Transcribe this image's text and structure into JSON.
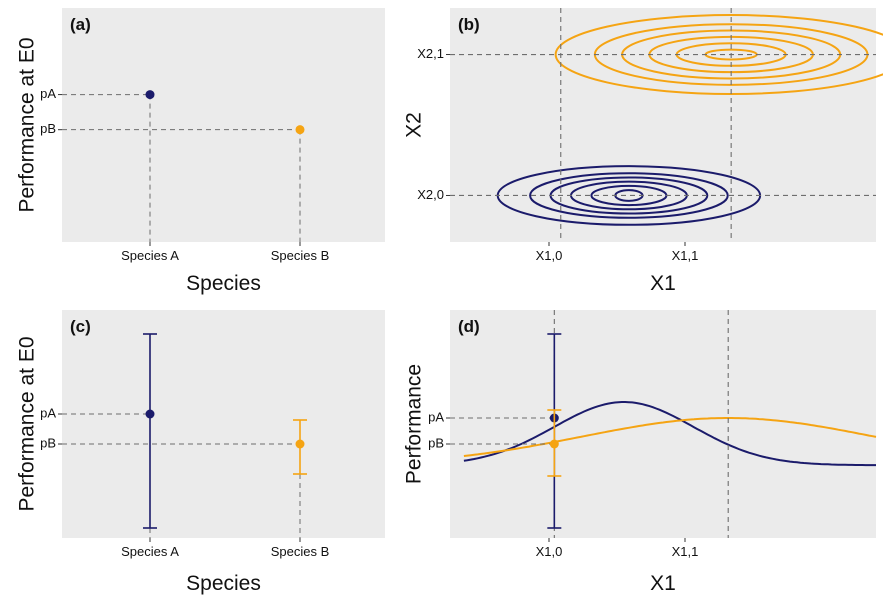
{
  "colors": {
    "species_a": "#1b1b6b",
    "species_b": "#f5a413",
    "panel_bg": "#ebebeb",
    "guide": "#6e6e6e"
  },
  "chart_data": [
    {
      "id": "a",
      "type": "scatter",
      "panel_label": "(a)",
      "xlabel": "Species",
      "ylabel": "Performance at E0",
      "categories": [
        "Species A",
        "Species B"
      ],
      "ytick_labels": [
        "pA",
        "pB"
      ],
      "ylim": [
        0,
        1
      ],
      "points": [
        {
          "category": "Species A",
          "y": 0.63,
          "color": "species_a"
        },
        {
          "category": "Species B",
          "y": 0.48,
          "color": "species_b"
        }
      ]
    },
    {
      "id": "b",
      "type": "contour",
      "panel_label": "(b)",
      "xlabel": "X1",
      "ylabel": "X2",
      "xtick_labels": [
        "X1,0",
        "X1,1"
      ],
      "ytick_labels": [
        "X2,0",
        "X2,1"
      ],
      "xlim": [
        -0.65,
        1.85
      ],
      "ylim": [
        -0.33,
        1.33
      ],
      "distributions": [
        {
          "color": "species_a",
          "center_x": 0.4,
          "center_y": 0,
          "rx": [
            0.08,
            0.22,
            0.34,
            0.46,
            0.58,
            0.77
          ],
          "ry": [
            0.038,
            0.068,
            0.098,
            0.128,
            0.158,
            0.208
          ]
        },
        {
          "color": "species_b",
          "center_x": 1.0,
          "center_y": 1,
          "rx": [
            0.15,
            0.32,
            0.48,
            0.64,
            0.8,
            1.03
          ],
          "ry": [
            0.035,
            0.08,
            0.125,
            0.17,
            0.215,
            0.28
          ]
        }
      ],
      "guides_x": [
        0,
        1
      ],
      "guides_y": [
        0,
        1
      ]
    },
    {
      "id": "c",
      "type": "errorbar",
      "panel_label": "(c)",
      "xlabel": "Species",
      "ylabel": "Performance at E0",
      "categories": [
        "Species A",
        "Species B"
      ],
      "ytick_labels": [
        "pA",
        "pB"
      ],
      "ylim": [
        0,
        1
      ],
      "points": [
        {
          "category": "Species A",
          "y": 0.6,
          "low": 0.03,
          "high": 1.0,
          "color": "species_a"
        },
        {
          "category": "Species B",
          "y": 0.45,
          "low": 0.3,
          "high": 0.57,
          "color": "species_b"
        }
      ]
    },
    {
      "id": "d",
      "type": "line",
      "panel_label": "(d)",
      "xlabel": "X1",
      "ylabel": "Performance",
      "xtick_labels": [
        "X1,0",
        "X1,1"
      ],
      "ytick_labels": [
        "pA",
        "pB"
      ],
      "xlim": [
        -0.6,
        1.85
      ],
      "ylim": [
        0,
        1
      ],
      "series": [
        {
          "color": "species_a",
          "baseline": 0.344,
          "amplitude": 0.316,
          "mu": 0.4,
          "sigma": 0.4
        },
        {
          "color": "species_b",
          "baseline": 0.344,
          "amplitude": 0.236,
          "mu": 1.0,
          "sigma": 0.84
        }
      ],
      "errorbars": [
        {
          "x": 0,
          "y": 0.58,
          "low": 0.03,
          "high": 1.0,
          "color": "species_a"
        },
        {
          "x": 0,
          "y": 0.45,
          "low": 0.29,
          "high": 0.62,
          "color": "species_b"
        }
      ]
    }
  ]
}
